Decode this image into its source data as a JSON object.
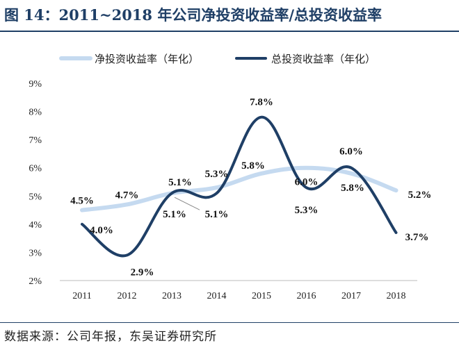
{
  "header": {
    "title": "图 14：2011~2018 年公司净投资收益率/总投资收益率"
  },
  "footer": {
    "source": "数据来源：公司年报，东吴证券研究所"
  },
  "colors": {
    "net": "#c5daf0",
    "total": "#1f3f66",
    "title": "#1f3f66"
  },
  "chart_data": {
    "type": "line",
    "categories": [
      "2011",
      "2012",
      "2013",
      "2014",
      "2015",
      "2016",
      "2017",
      "2018"
    ],
    "ylim": [
      2,
      9
    ],
    "yticks": [
      "2%",
      "3%",
      "4%",
      "5%",
      "6%",
      "7%",
      "8%",
      "9%"
    ],
    "grid": false,
    "legend": "top",
    "series": [
      {
        "name": "净投资收益率（年化）",
        "values": [
          4.5,
          4.7,
          5.1,
          5.3,
          5.8,
          6.0,
          5.8,
          5.2
        ],
        "labels": [
          "4.5%",
          "4.7%",
          "5.1%",
          "5.3%",
          "5.8%",
          "6.0%",
          "5.8%",
          "5.2%"
        ]
      },
      {
        "name": "总投资收益率（年化）",
        "values": [
          4.0,
          2.9,
          5.1,
          5.1,
          7.8,
          5.3,
          6.0,
          3.7
        ],
        "labels": [
          "4.0%",
          "2.9%",
          "5.1%",
          "5.1%",
          "7.8%",
          "5.3%",
          "6.0%",
          "3.7%"
        ]
      }
    ]
  }
}
